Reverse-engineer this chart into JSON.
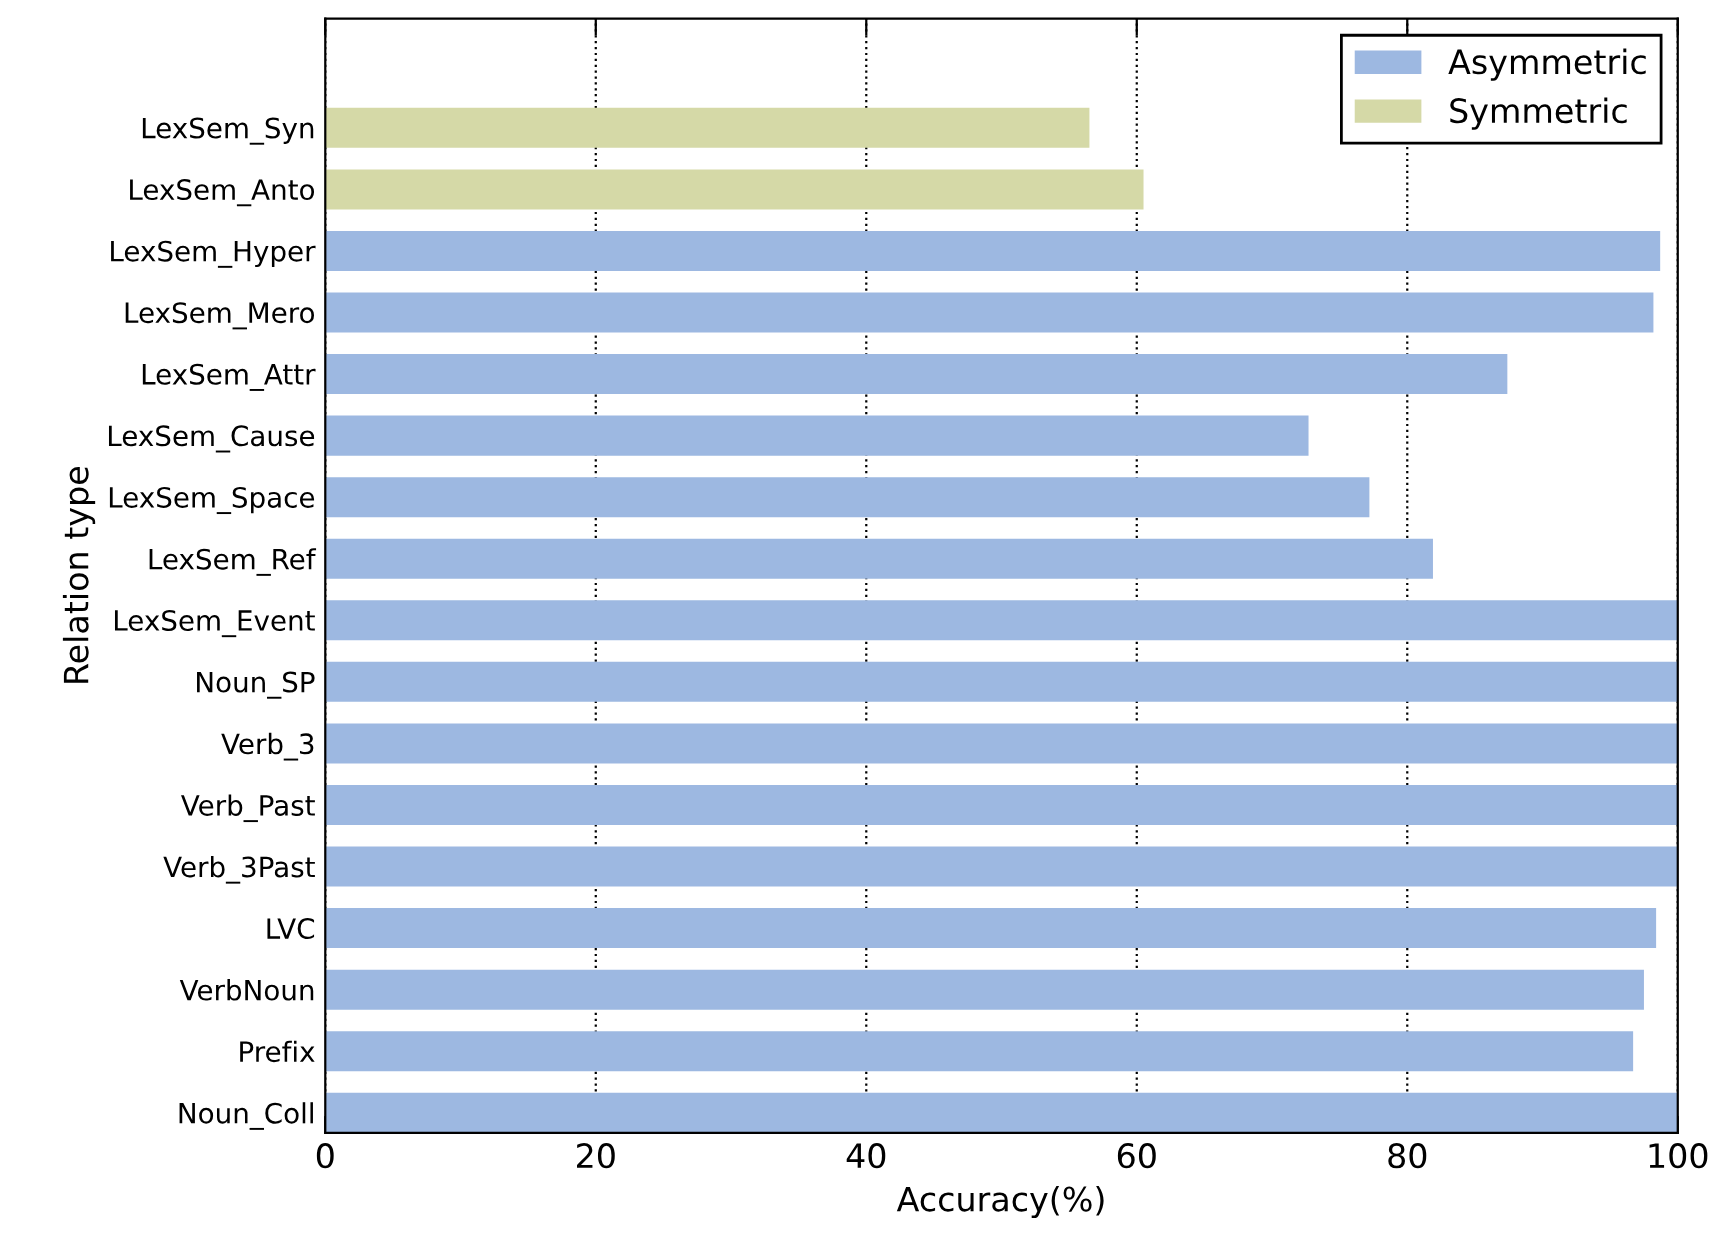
{
  "chart_data": {
    "type": "bar",
    "orientation": "horizontal",
    "xlabel": "Accuracy(%)",
    "ylabel": "Relation type",
    "categories": [
      "LexSem_Syn",
      "LexSem_Anto",
      "LexSem_Hyper",
      "LexSem_Mero",
      "LexSem_Attr",
      "LexSem_Cause",
      "LexSem_Space",
      "LexSem_Ref",
      "LexSem_Event",
      "Noun_SP",
      "Verb_3",
      "Verb_Past",
      "Verb_3Past",
      "LVC",
      "VerbNoun",
      "Prefix",
      "Noun_Coll"
    ],
    "series": [
      {
        "name": "Asymmetric",
        "color": "#9db8e1",
        "values": [
          null,
          null,
          98.7,
          98.2,
          87.4,
          72.7,
          77.2,
          81.9,
          100,
          100,
          100,
          100,
          100,
          98.4,
          97.5,
          96.7,
          100
        ]
      },
      {
        "name": "Symmetric",
        "color": "#d5d9a7",
        "values": [
          56.5,
          60.5,
          null,
          null,
          null,
          null,
          null,
          null,
          null,
          null,
          null,
          null,
          null,
          null,
          null,
          null,
          null
        ]
      }
    ],
    "xlim": [
      0,
      100
    ],
    "xticks": [
      0,
      20,
      40,
      60,
      80,
      100
    ],
    "grid": "x",
    "legend": "top right"
  }
}
